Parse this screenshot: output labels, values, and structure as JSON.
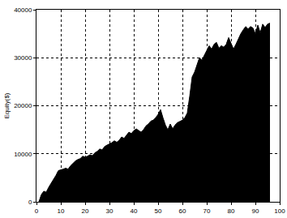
{
  "chart_data": {
    "type": "area",
    "y_label": "Equity($)",
    "color": "#000000",
    "grid": true,
    "xlim": [
      0,
      100
    ],
    "xticks": [
      0,
      10,
      20,
      30,
      40,
      50,
      60,
      70,
      80,
      90,
      100
    ],
    "ylim": [
      0,
      40000
    ],
    "yticks": [
      0,
      10000,
      20000,
      30000,
      40000
    ],
    "x": [
      1,
      2,
      3,
      4,
      5,
      6,
      7,
      8,
      9,
      10,
      11,
      12,
      13,
      14,
      15,
      16,
      17,
      18,
      19,
      20,
      21,
      22,
      23,
      24,
      25,
      26,
      27,
      28,
      29,
      30,
      31,
      32,
      33,
      34,
      35,
      36,
      37,
      38,
      39,
      40,
      41,
      42,
      43,
      44,
      45,
      46,
      47,
      48,
      49,
      50,
      51,
      52,
      53,
      54,
      55,
      56,
      57,
      58,
      59,
      60,
      61,
      62,
      63,
      64,
      65,
      66,
      67,
      68,
      69,
      70,
      71,
      72,
      73,
      74,
      75,
      76,
      77,
      78,
      79,
      80,
      81,
      82,
      83,
      84,
      85,
      86,
      87,
      88,
      89,
      90,
      91,
      92,
      93,
      94,
      95,
      96
    ],
    "values": [
      0,
      1500,
      2200,
      2000,
      3000,
      3800,
      4500,
      5500,
      6500,
      6600,
      6800,
      7000,
      6800,
      7500,
      8000,
      8500,
      8800,
      9000,
      9500,
      9300,
      9500,
      9800,
      9600,
      10200,
      10500,
      11000,
      10800,
      11500,
      11800,
      12000,
      12300,
      12700,
      12400,
      12800,
      13500,
      13200,
      13800,
      14500,
      14200,
      14800,
      15200,
      14800,
      14500,
      15000,
      15800,
      16200,
      16800,
      17000,
      17500,
      18200,
      19200,
      17500,
      16000,
      15000,
      16200,
      15200,
      16000,
      16500,
      16800,
      17000,
      17500,
      18500,
      22000,
      26000,
      27000,
      28500,
      30000,
      29500,
      30500,
      31500,
      32500,
      31800,
      32800,
      33200,
      32000,
      32500,
      32200,
      32800,
      34200,
      33000,
      31800,
      32800,
      34000,
      35000,
      35800,
      36500,
      36000,
      36500,
      36200,
      35000,
      36800,
      35200,
      37000,
      36300,
      37000,
      37200
    ]
  }
}
